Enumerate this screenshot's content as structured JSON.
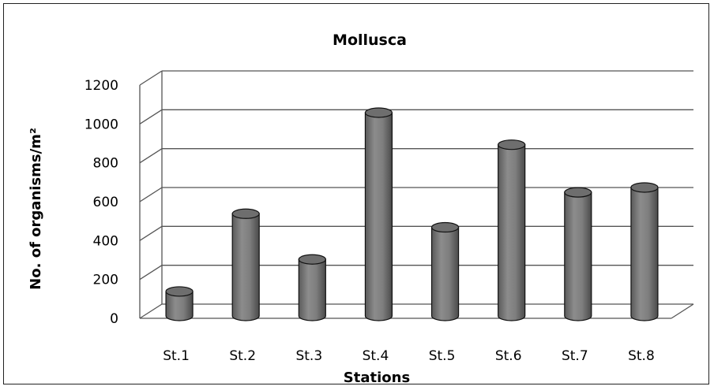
{
  "chart_data": {
    "type": "bar",
    "style": "3d-cylinder",
    "title": "Mollusca",
    "xlabel": "Stations",
    "ylabel": "No. of organisms/m²",
    "categories": [
      "St.1",
      "St.2",
      "St.3",
      "St.4",
      "St.5",
      "St.6",
      "St.7",
      "St.8"
    ],
    "values": [
      130,
      530,
      295,
      1050,
      460,
      885,
      640,
      665
    ],
    "ylim": [
      0,
      1200
    ],
    "yticks": [
      "0",
      "200",
      "400",
      "600",
      "800",
      "1000",
      "1200"
    ],
    "grid": true,
    "legend": "none",
    "bar_color": "#808080"
  }
}
